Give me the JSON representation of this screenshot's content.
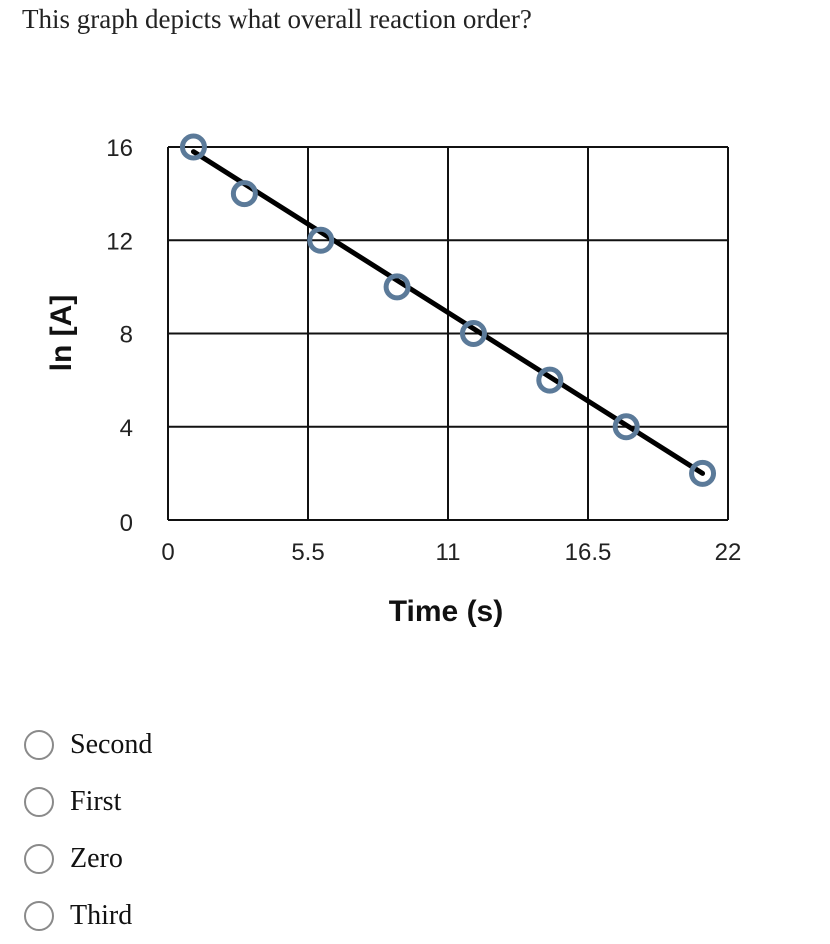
{
  "question": "This graph depicts what overall reaction order?",
  "chart_data": {
    "type": "line",
    "xlabel": "Time (s)",
    "ylabel": "ln [A]",
    "xlim": [
      0,
      22
    ],
    "ylim": [
      0,
      16
    ],
    "x_ticks": [
      0,
      5.5,
      11,
      16.5,
      22
    ],
    "x_tick_labels": [
      "0",
      "5.5",
      "11",
      "16.5",
      "22"
    ],
    "y_ticks": [
      0,
      4,
      8,
      12,
      16
    ],
    "y_tick_labels": [
      "0",
      "4",
      "8",
      "12",
      "16"
    ],
    "grid": true,
    "series": [
      {
        "x": [
          1,
          3,
          6,
          9,
          12,
          15,
          18,
          21
        ],
        "y": [
          16,
          14,
          12,
          10,
          8,
          6,
          4,
          2
        ],
        "marker": "open-circle",
        "marker_color": "#5b7a99"
      }
    ],
    "fit_line": {
      "x": [
        1,
        21
      ],
      "y": [
        15.8,
        2
      ],
      "color": "#000000"
    }
  },
  "options": [
    {
      "label": "Second"
    },
    {
      "label": "First"
    },
    {
      "label": "Zero"
    },
    {
      "label": "Third"
    }
  ]
}
